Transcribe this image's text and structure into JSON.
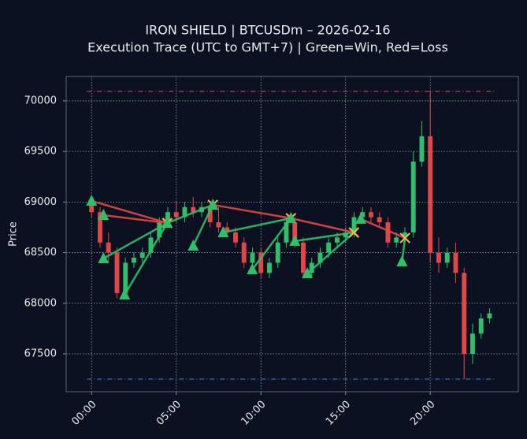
{
  "chart_data": {
    "type": "candlestick",
    "title": "IRON SHIELD | BTCUSDm – 2026-02-16",
    "subtitle": "Execution Trace (UTC to GMT+7) | Green=Win, Red=Loss",
    "y_label": "Price",
    "xlim": [
      -1.5,
      25.2
    ],
    "ylim": [
      67126,
      70241
    ],
    "xticks": [
      {
        "value": 0,
        "label": "00:00"
      },
      {
        "value": 5,
        "label": "05:00"
      },
      {
        "value": 10,
        "label": "10:00"
      },
      {
        "value": 15,
        "label": "15:00"
      },
      {
        "value": 20,
        "label": "20:00"
      }
    ],
    "yticks": [
      67500,
      68000,
      68500,
      69000,
      69500,
      70000
    ],
    "grid": true,
    "up_color": "#2fbf6a",
    "down_color": "#e04848",
    "x": [
      0,
      0.5,
      1,
      1.5,
      2,
      2.5,
      3,
      3.5,
      4,
      4.5,
      5,
      5.5,
      6,
      6.5,
      7,
      7.5,
      8,
      8.5,
      9,
      9.5,
      10,
      10.5,
      11,
      11.5,
      12,
      12.5,
      13,
      13.5,
      14,
      14.5,
      15,
      15.5,
      16,
      16.5,
      17,
      17.5,
      18,
      18.5,
      19,
      19.5,
      20,
      20.5,
      21,
      21.5,
      22,
      22.5,
      23,
      23.5
    ],
    "open": [
      69000,
      68900,
      68600,
      68500,
      68100,
      68400,
      68450,
      68500,
      68650,
      68800,
      68900,
      68850,
      68950,
      68900,
      68950,
      68800,
      68750,
      68700,
      68600,
      68400,
      68500,
      68300,
      68400,
      68600,
      68800,
      68600,
      68300,
      68400,
      68500,
      68600,
      68650,
      68700,
      68850,
      68900,
      68850,
      68800,
      68600,
      68650,
      68700,
      69400,
      69650,
      68500,
      68400,
      68500,
      68300,
      67500,
      67700,
      67850
    ],
    "high": [
      69050,
      68950,
      68700,
      68550,
      68450,
      68500,
      68550,
      68700,
      68850,
      68950,
      69000,
      69000,
      69050,
      69000,
      69000,
      68950,
      68800,
      68750,
      68650,
      68550,
      68550,
      68450,
      68650,
      68850,
      68850,
      68650,
      68450,
      68550,
      68650,
      68700,
      68750,
      68900,
      68950,
      68950,
      68900,
      68850,
      68700,
      68750,
      69500,
      69800,
      70100,
      68650,
      68550,
      68600,
      68350,
      67800,
      67900,
      67950
    ],
    "low": [
      68850,
      68550,
      68400,
      68050,
      68050,
      68350,
      68400,
      68450,
      68600,
      68750,
      68800,
      68800,
      68850,
      68850,
      68750,
      68700,
      68650,
      68550,
      68350,
      68350,
      68250,
      68250,
      68350,
      68550,
      68550,
      68250,
      68250,
      68350,
      68450,
      68550,
      68600,
      68650,
      68800,
      68800,
      68750,
      68550,
      68550,
      68600,
      68650,
      69350,
      68400,
      68300,
      68350,
      68200,
      67250,
      67400,
      67650,
      67800
    ],
    "close": [
      68900,
      68600,
      68500,
      68100,
      68400,
      68450,
      68500,
      68650,
      68800,
      68900,
      68850,
      68950,
      68900,
      68950,
      68800,
      68750,
      68700,
      68600,
      68400,
      68500,
      68300,
      68400,
      68600,
      68800,
      68600,
      68300,
      68400,
      68500,
      68600,
      68650,
      68700,
      68850,
      68900,
      68850,
      68800,
      68600,
      68650,
      68700,
      69400,
      69650,
      68500,
      68400,
      68500,
      68300,
      67500,
      67700,
      67850,
      67900
    ],
    "levels": [
      {
        "value": 70093,
        "color": "#d9506a"
      },
      {
        "value": 67251,
        "color": "#4a7fd6"
      }
    ],
    "entry_color": "#2fbf6a",
    "exit_color": "#e8b84a",
    "trades": [
      {
        "entry_x": 0,
        "entry_y": 69011,
        "exit_x": 4.47,
        "exit_y": 68793,
        "color": "#e04848"
      },
      {
        "entry_x": 0.7,
        "entry_y": 68870,
        "exit_x": 4.47,
        "exit_y": 68793,
        "color": "#e04848"
      },
      {
        "entry_x": 0.7,
        "entry_y": 68442,
        "exit_x": 4.47,
        "exit_y": 68793,
        "color": "#2fbf6a"
      },
      {
        "entry_x": 1.95,
        "entry_y": 68084,
        "exit_x": 4.47,
        "exit_y": 68793,
        "color": "#2fbf6a"
      },
      {
        "entry_x": 4.47,
        "entry_y": 68793,
        "exit_x": 7.16,
        "exit_y": 68972,
        "color": "#2fbf6a"
      },
      {
        "entry_x": 6.0,
        "entry_y": 68567,
        "exit_x": 7.16,
        "exit_y": 68972,
        "color": "#2fbf6a"
      },
      {
        "entry_x": 7.16,
        "entry_y": 68972,
        "exit_x": 11.77,
        "exit_y": 68840,
        "color": "#e04848"
      },
      {
        "entry_x": 7.77,
        "entry_y": 68699,
        "exit_x": 11.77,
        "exit_y": 68840,
        "color": "#2fbf6a"
      },
      {
        "entry_x": 9.49,
        "entry_y": 68333,
        "exit_x": 11.77,
        "exit_y": 68840,
        "color": "#2fbf6a"
      },
      {
        "entry_x": 11.77,
        "entry_y": 68840,
        "exit_x": 15.49,
        "exit_y": 68699,
        "color": "#e04848"
      },
      {
        "entry_x": 12.0,
        "entry_y": 68614,
        "exit_x": 15.49,
        "exit_y": 68699,
        "color": "#2fbf6a"
      },
      {
        "entry_x": 12.74,
        "entry_y": 68294,
        "exit_x": 15.49,
        "exit_y": 68699,
        "color": "#2fbf6a"
      },
      {
        "entry_x": 15.9,
        "entry_y": 68832,
        "exit_x": 18.51,
        "exit_y": 68645,
        "color": "#e04848"
      },
      {
        "entry_x": 18.33,
        "entry_y": 68411,
        "exit_x": 18.51,
        "exit_y": 68645,
        "color": "#2fbf6a"
      }
    ]
  }
}
